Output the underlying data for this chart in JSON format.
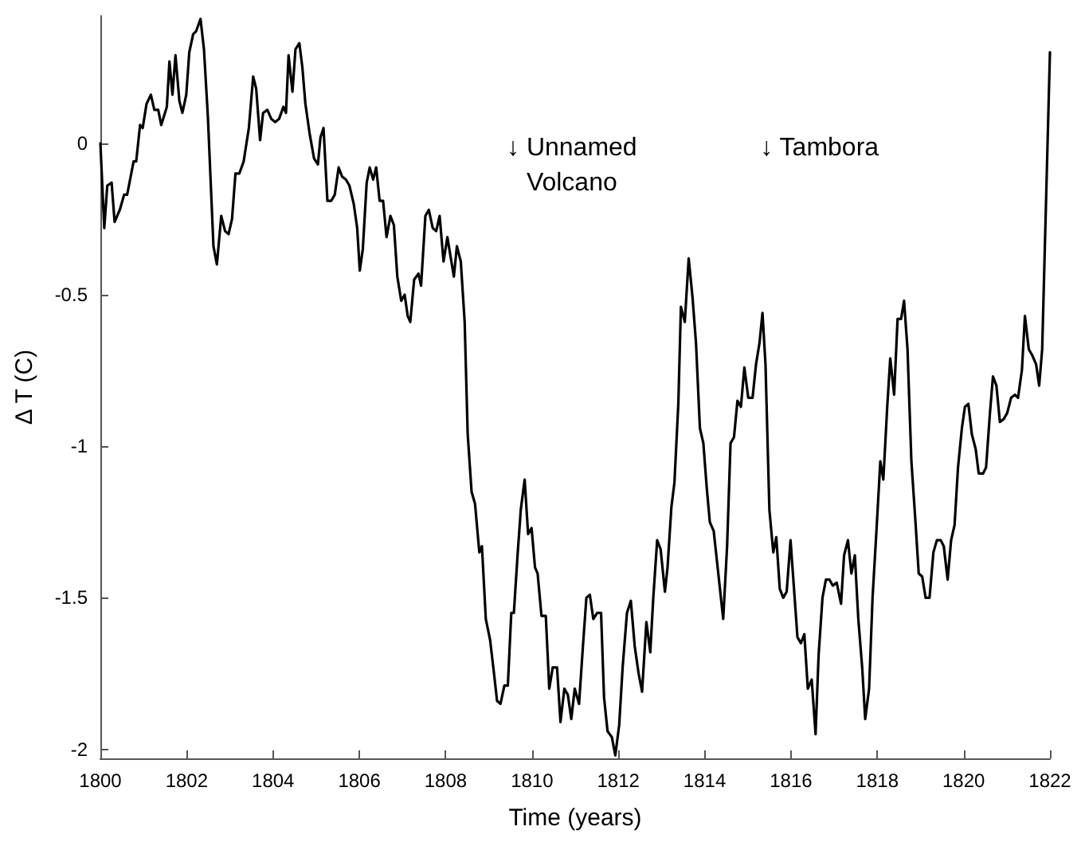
{
  "chart_data": {
    "type": "line",
    "xlabel": "Time (years)",
    "ylabel": "Δ T (C)",
    "xlim": [
      1800,
      1822
    ],
    "xticks": [
      1800,
      1802,
      1804,
      1806,
      1808,
      1810,
      1812,
      1814,
      1816,
      1818,
      1820,
      1822
    ],
    "ylim": [
      -2.03,
      0.42
    ],
    "yticks": [
      -2,
      -1.5,
      -1,
      -0.5,
      0
    ],
    "marker": "none",
    "line_style": "solid",
    "annotations": [
      "↓ Unnamed\nVolcano",
      "↓ Tambora"
    ],
    "series": [
      {
        "color": "#000000",
        "x": [
          1800,
          1800.09,
          1800.16,
          1800.26,
          1800.33,
          1800.45,
          1800.55,
          1800.62,
          1800.77,
          1800.83,
          1800.92,
          1800.98,
          1801.07,
          1801.17,
          1801.25,
          1801.34,
          1801.41,
          1801.54,
          1801.6,
          1801.67,
          1801.74,
          1801.83,
          1801.9,
          1801.99,
          1802.06,
          1802.15,
          1802.22,
          1802.32,
          1802.4,
          1802.49,
          1802.62,
          1802.7,
          1802.8,
          1802.89,
          1802.97,
          1803.05,
          1803.13,
          1803.22,
          1803.32,
          1803.44,
          1803.54,
          1803.61,
          1803.7,
          1803.77,
          1803.87,
          1803.96,
          1804.05,
          1804.14,
          1804.24,
          1804.3,
          1804.36,
          1804.45,
          1804.52,
          1804.61,
          1804.68,
          1804.75,
          1804.85,
          1804.95,
          1805.04,
          1805.1,
          1805.17,
          1805.26,
          1805.35,
          1805.43,
          1805.52,
          1805.6,
          1805.69,
          1805.77,
          1805.87,
          1805.95,
          1806.01,
          1806.08,
          1806.17,
          1806.24,
          1806.32,
          1806.39,
          1806.47,
          1806.55,
          1806.63,
          1806.72,
          1806.8,
          1806.88,
          1806.97,
          1807.05,
          1807.12,
          1807.18,
          1807.27,
          1807.37,
          1807.43,
          1807.53,
          1807.61,
          1807.7,
          1807.78,
          1807.86,
          1807.95,
          1808.04,
          1808.12,
          1808.19,
          1808.26,
          1808.35,
          1808.44,
          1808.51,
          1808.6,
          1808.68,
          1808.78,
          1808.84,
          1808.93,
          1809.03,
          1809.12,
          1809.19,
          1809.27,
          1809.36,
          1809.44,
          1809.52,
          1809.58,
          1809.67,
          1809.74,
          1809.83,
          1809.91,
          1809.99,
          1810.07,
          1810.13,
          1810.22,
          1810.32,
          1810.4,
          1810.48,
          1810.58,
          1810.66,
          1810.75,
          1810.83,
          1810.91,
          1810.99,
          1811.09,
          1811.18,
          1811.26,
          1811.34,
          1811.42,
          1811.51,
          1811.6,
          1811.67,
          1811.75,
          1811.85,
          1811.93,
          1812.02,
          1812.1,
          1812.2,
          1812.29,
          1812.38,
          1812.47,
          1812.55,
          1812.65,
          1812.74,
          1812.81,
          1812.9,
          1812.98,
          1813.08,
          1813.14,
          1813.23,
          1813.3,
          1813.39,
          1813.45,
          1813.54,
          1813.63,
          1813.72,
          1813.8,
          1813.89,
          1813.97,
          1814.05,
          1814.12,
          1814.21,
          1814.43,
          1814.52,
          1814.6,
          1814.68,
          1814.76,
          1814.84,
          1814.92,
          1815.01,
          1815.11,
          1815.19,
          1815.27,
          1815.34,
          1815.41,
          1815.5,
          1815.59,
          1815.66,
          1815.74,
          1815.82,
          1815.9,
          1815.99,
          1816.07,
          1816.15,
          1816.23,
          1816.31,
          1816.39,
          1816.48,
          1816.57,
          1816.64,
          1816.73,
          1816.81,
          1816.89,
          1816.97,
          1817.06,
          1817.16,
          1817.23,
          1817.32,
          1817.4,
          1817.48,
          1817.56,
          1817.65,
          1817.72,
          1817.81,
          1817.89,
          1817.98,
          1818.07,
          1818.14,
          1818.23,
          1818.3,
          1818.39,
          1818.47,
          1818.55,
          1818.62,
          1818.7,
          1818.79,
          1818.88,
          1818.96,
          1819.04,
          1819.12,
          1819.21,
          1819.3,
          1819.38,
          1819.47,
          1819.54,
          1819.63,
          1819.71,
          1819.79,
          1819.87,
          1819.96,
          1820.03,
          1820.11,
          1820.19,
          1820.28,
          1820.35,
          1820.45,
          1820.52,
          1820.61,
          1820.68,
          1820.76,
          1820.84,
          1820.93,
          1821.01,
          1821.1,
          1821.19,
          1821.26,
          1821.35,
          1821.42,
          1821.51,
          1821.59,
          1821.68,
          1821.75,
          1821.82,
          1822
        ],
        "values": [
          0,
          -0.28,
          -0.14,
          -0.13,
          -0.26,
          -0.22,
          -0.17,
          -0.17,
          -0.06,
          -0.06,
          0.06,
          0.05,
          0.13,
          0.16,
          0.11,
          0.11,
          0.06,
          0.12,
          0.27,
          0.16,
          0.29,
          0.14,
          0.1,
          0.16,
          0.3,
          0.36,
          0.37,
          0.41,
          0.31,
          0.09,
          -0.34,
          -0.4,
          -0.24,
          -0.29,
          -0.3,
          -0.25,
          -0.1,
          -0.1,
          -0.06,
          0.05,
          0.22,
          0.18,
          0.01,
          0.1,
          0.11,
          0.08,
          0.07,
          0.08,
          0.12,
          0.1,
          0.29,
          0.17,
          0.31,
          0.33,
          0.25,
          0.13,
          0.03,
          -0.05,
          -0.07,
          0.02,
          0.05,
          -0.19,
          -0.19,
          -0.17,
          -0.08,
          -0.11,
          -0.12,
          -0.14,
          -0.2,
          -0.28,
          -0.42,
          -0.35,
          -0.13,
          -0.08,
          -0.12,
          -0.08,
          -0.19,
          -0.19,
          -0.31,
          -0.24,
          -0.27,
          -0.44,
          -0.52,
          -0.5,
          -0.57,
          -0.59,
          -0.45,
          -0.43,
          -0.47,
          -0.24,
          -0.22,
          -0.28,
          -0.29,
          -0.24,
          -0.39,
          -0.31,
          -0.38,
          -0.44,
          -0.34,
          -0.39,
          -0.59,
          -0.96,
          -1.15,
          -1.19,
          -1.35,
          -1.33,
          -1.57,
          -1.64,
          -1.75,
          -1.84,
          -1.85,
          -1.79,
          -1.79,
          -1.55,
          -1.55,
          -1.35,
          -1.21,
          -1.11,
          -1.29,
          -1.27,
          -1.4,
          -1.42,
          -1.56,
          -1.56,
          -1.8,
          -1.73,
          -1.73,
          -1.91,
          -1.8,
          -1.82,
          -1.9,
          -1.8,
          -1.85,
          -1.66,
          -1.5,
          -1.49,
          -1.57,
          -1.55,
          -1.55,
          -1.83,
          -1.94,
          -1.96,
          -2.02,
          -1.92,
          -1.73,
          -1.55,
          -1.51,
          -1.66,
          -1.75,
          -1.81,
          -1.58,
          -1.68,
          -1.5,
          -1.31,
          -1.34,
          -1.48,
          -1.4,
          -1.2,
          -1.12,
          -0.86,
          -0.54,
          -0.59,
          -0.38,
          -0.51,
          -0.66,
          -0.94,
          -0.99,
          -1.14,
          -1.25,
          -1.28,
          -1.57,
          -1.33,
          -0.99,
          -0.97,
          -0.85,
          -0.87,
          -0.74,
          -0.84,
          -0.84,
          -0.73,
          -0.66,
          -0.56,
          -0.73,
          -1.21,
          -1.35,
          -1.3,
          -1.47,
          -1.5,
          -1.48,
          -1.31,
          -1.47,
          -1.63,
          -1.65,
          -1.62,
          -1.8,
          -1.77,
          -1.95,
          -1.69,
          -1.5,
          -1.44,
          -1.44,
          -1.46,
          -1.45,
          -1.52,
          -1.36,
          -1.31,
          -1.42,
          -1.36,
          -1.57,
          -1.73,
          -1.9,
          -1.8,
          -1.5,
          -1.28,
          -1.05,
          -1.11,
          -0.87,
          -0.71,
          -0.83,
          -0.58,
          -0.58,
          -0.52,
          -0.68,
          -1.05,
          -1.24,
          -1.42,
          -1.43,
          -1.5,
          -1.5,
          -1.35,
          -1.31,
          -1.31,
          -1.33,
          -1.44,
          -1.31,
          -1.26,
          -1.07,
          -0.94,
          -0.87,
          -0.86,
          -0.96,
          -1.01,
          -1.09,
          -1.09,
          -1.07,
          -0.89,
          -0.77,
          -0.8,
          -0.92,
          -0.91,
          -0.89,
          -0.84,
          -0.83,
          -0.84,
          -0.75,
          -0.57,
          -0.68,
          -0.7,
          -0.73,
          -0.8,
          -0.68,
          0.3
        ]
      }
    ]
  }
}
